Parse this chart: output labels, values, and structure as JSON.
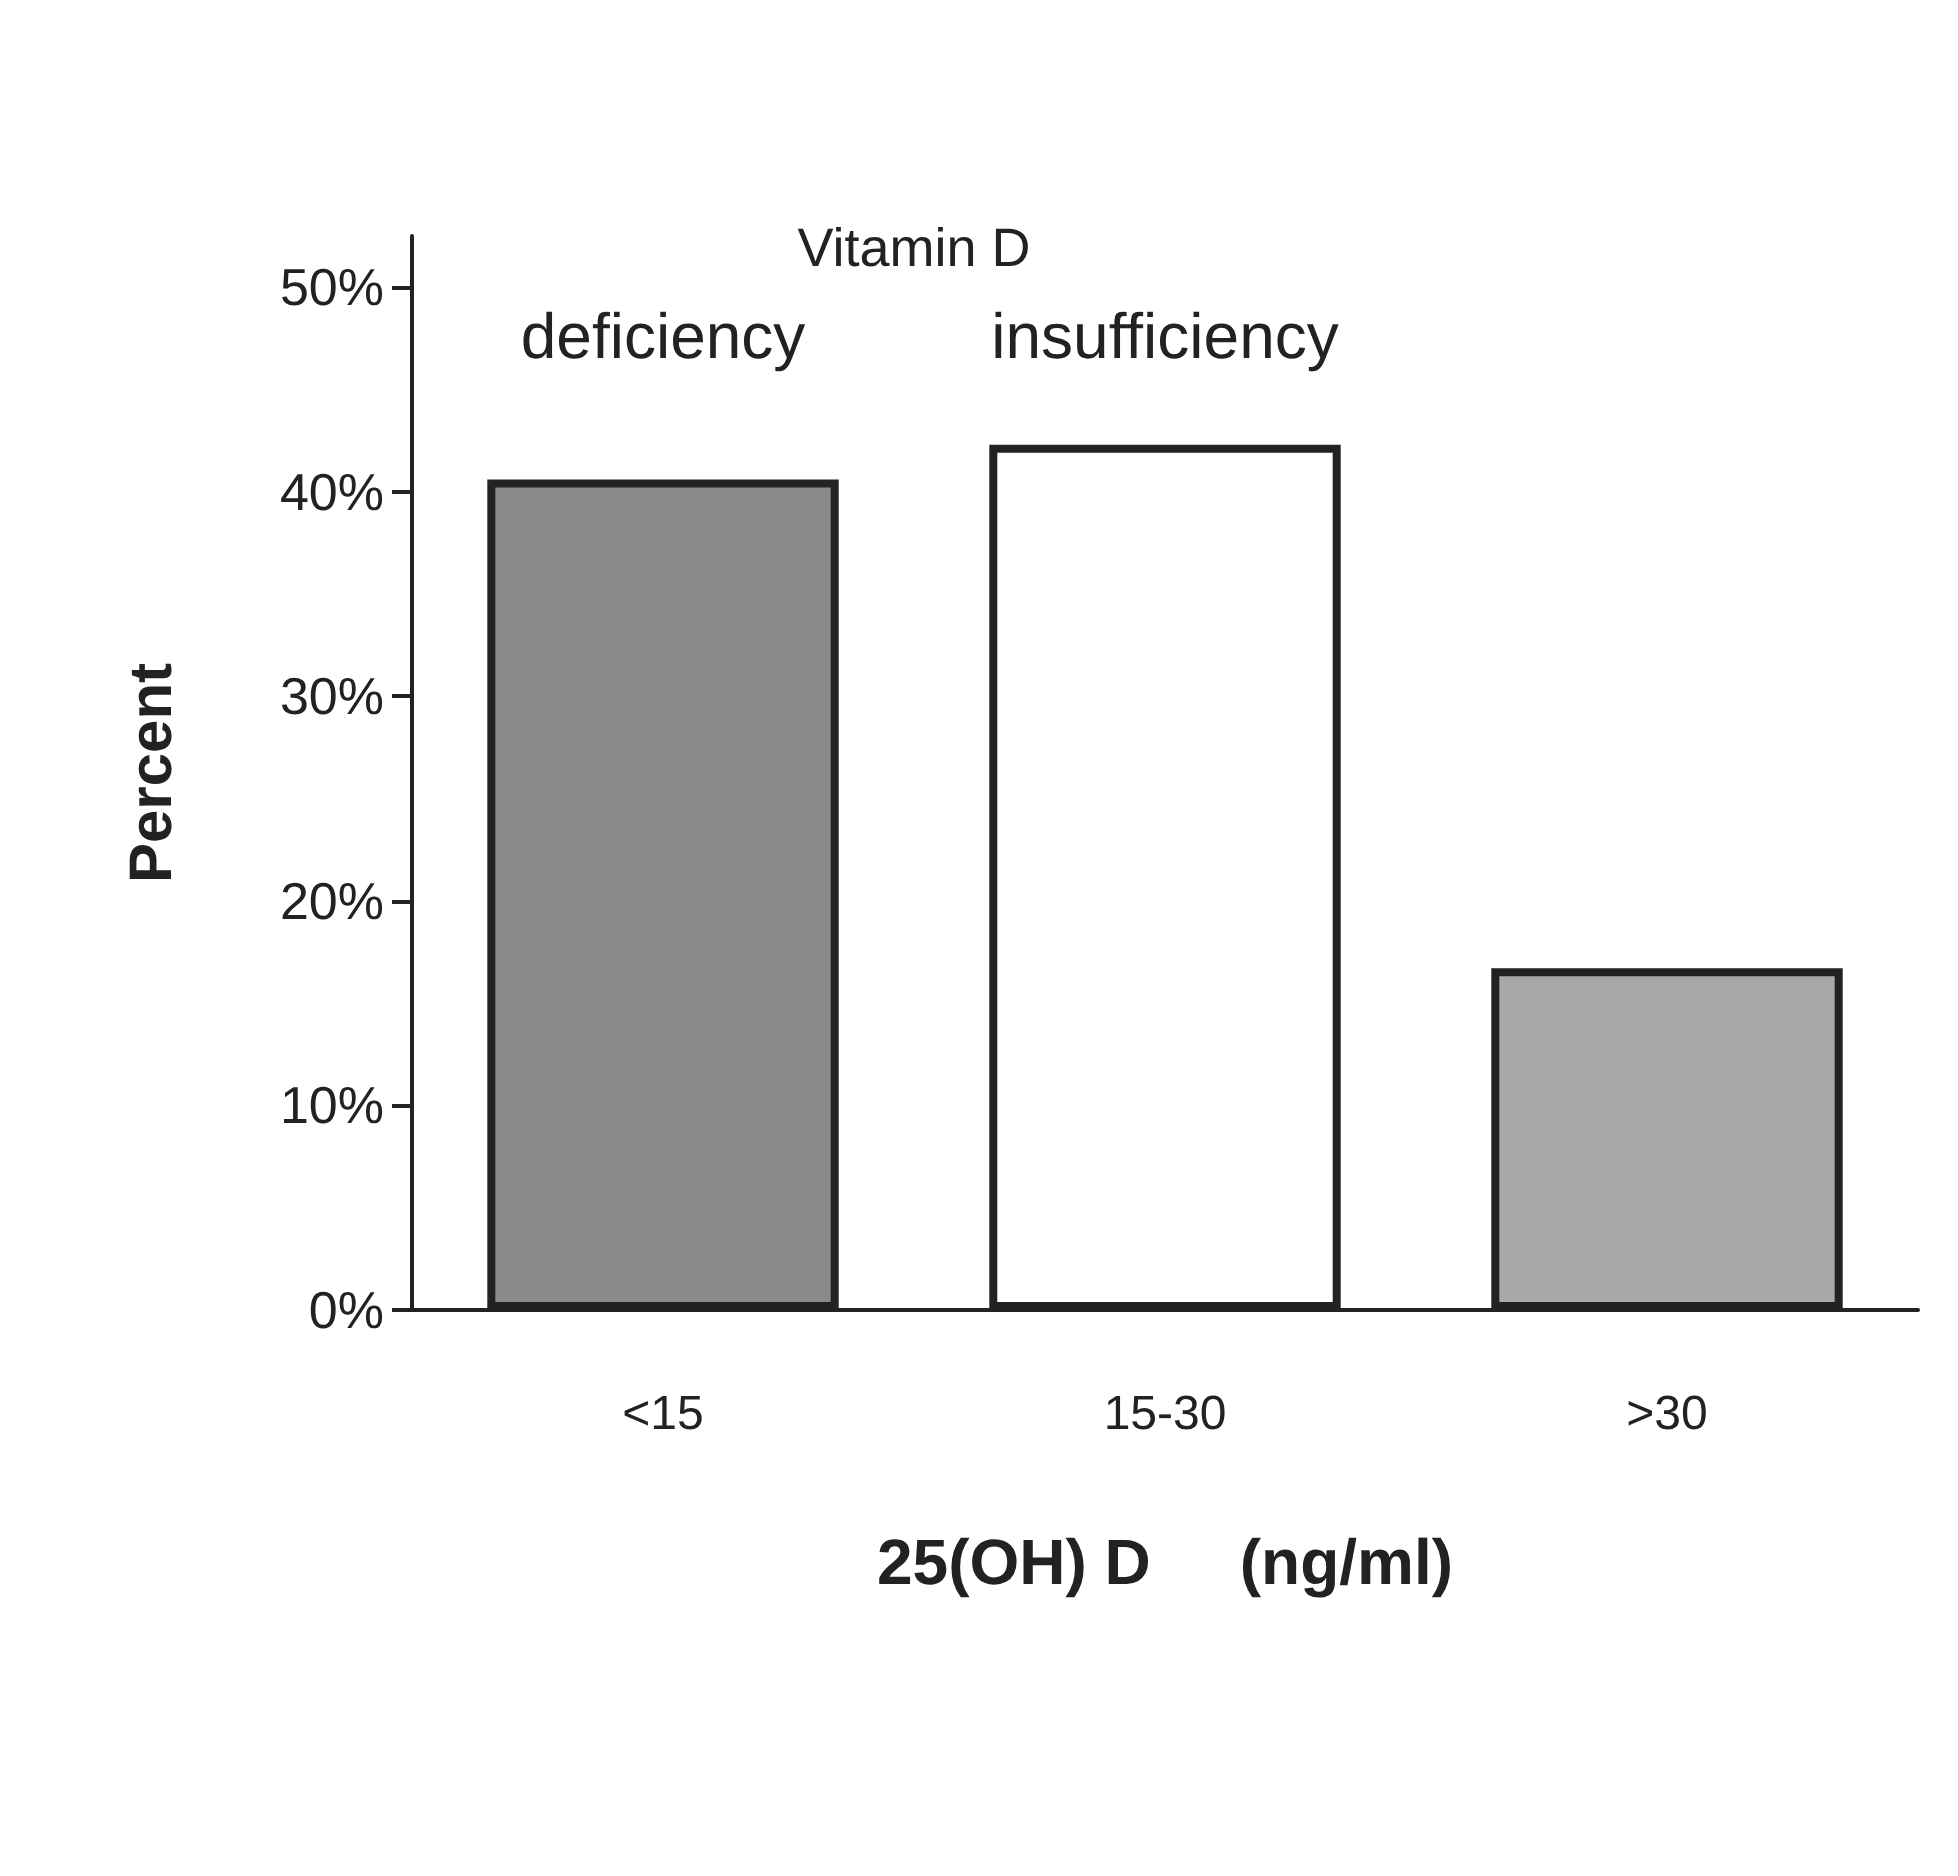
{
  "chart_data": {
    "type": "bar",
    "categories": [
      "<15",
      "15-30",
      ">30"
    ],
    "values": [
      40.6,
      42.3,
      16.7
    ],
    "colors": [
      "#8a8a8a",
      "#ffffff",
      "#a8a8a8"
    ],
    "xlabel": "25(OH) D     (ng/ml)",
    "ylabel": "Percent",
    "ylim": [
      0,
      52.5
    ],
    "yticks": [
      {
        "value": 0,
        "label": "0%"
      },
      {
        "value": 10,
        "label": "10%"
      },
      {
        "value": 20,
        "label": "20%"
      },
      {
        "value": 30,
        "label": "30%"
      },
      {
        "value": 40,
        "label": "40%"
      },
      {
        "value": 50,
        "label": "50%"
      }
    ],
    "annotations": [
      "Vitamin D",
      "deficiency",
      "insufficiency"
    ]
  }
}
